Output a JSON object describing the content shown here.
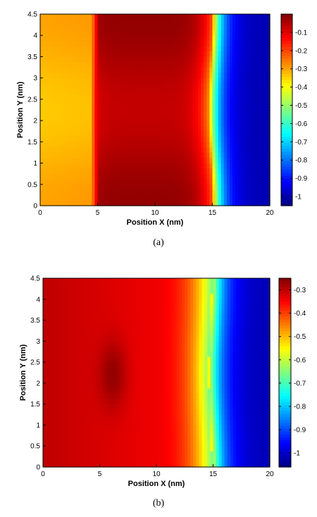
{
  "chart_data": [
    {
      "type": "heatmap",
      "caption": "(a)",
      "xlabel": "Position X (nm)",
      "ylabel": "Position Y (nm)",
      "xlim": [
        0,
        20
      ],
      "ylim": [
        0,
        4.5
      ],
      "xticks": [
        "0",
        "5",
        "10",
        "15",
        "20"
      ],
      "yticks": [
        "0",
        "0.5",
        "1",
        "1.5",
        "2",
        "2.5",
        "3",
        "3.5",
        "4",
        "4.5"
      ],
      "colorbar": {
        "clim": [
          -1.05,
          0
        ],
        "ticks": [
          "-1",
          "-0.9",
          "-0.8",
          "-0.7",
          "-0.6",
          "-0.5",
          "-0.4",
          "-0.3",
          "-0.2",
          "-0.1"
        ],
        "colormap": "jet"
      },
      "regions": [
        {
          "x": [
            0,
            4.5
          ],
          "value": -0.3
        },
        {
          "x": [
            4.8,
            14.8
          ],
          "value": -0.05
        },
        {
          "x": [
            15.2,
            20
          ],
          "value": -1.0
        }
      ]
    },
    {
      "type": "heatmap",
      "caption": "(b)",
      "xlabel": "Position X (nm)",
      "ylabel": "Position Y (nm)",
      "xlim": [
        0,
        20
      ],
      "ylim": [
        0,
        4.5
      ],
      "xticks": [
        "0",
        "5",
        "10",
        "15",
        "20"
      ],
      "yticks": [
        "0",
        "0.5",
        "1",
        "1.5",
        "2",
        "2.5",
        "3",
        "3.5",
        "4",
        "4.5"
      ],
      "colorbar": {
        "clim": [
          -1.06,
          -0.25
        ],
        "ticks": [
          "-1",
          "-0.9",
          "-0.8",
          "-0.7",
          "-0.6",
          "-0.5",
          "-0.4",
          "-0.3"
        ],
        "colormap": "jet"
      },
      "regions": [
        {
          "x": [
            0,
            10
          ],
          "value": -0.3
        },
        {
          "x": [
            10,
            14.8
          ],
          "value": -0.4
        },
        {
          "x": [
            15.2,
            20
          ],
          "value": -1.0
        }
      ]
    }
  ]
}
